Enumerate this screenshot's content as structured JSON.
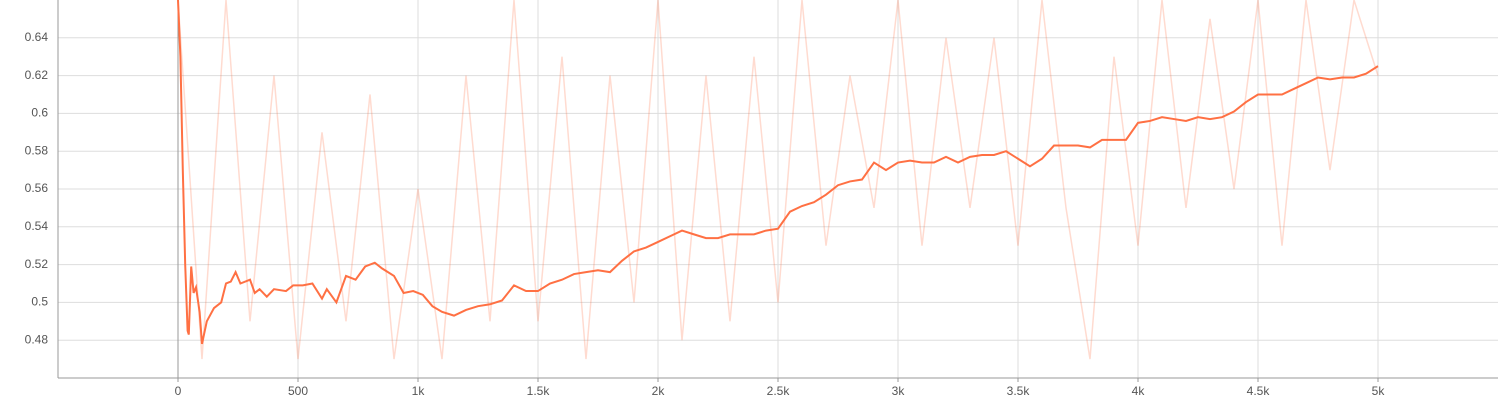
{
  "chart_data": {
    "type": "line",
    "xlim": [
      -500,
      5500
    ],
    "ylim": [
      0.46,
      0.66
    ],
    "xticks": [
      0,
      500,
      {
        "value": 1000,
        "label": "1k"
      },
      {
        "value": 1500,
        "label": "1.5k"
      },
      {
        "value": 2000,
        "label": "2k"
      },
      {
        "value": 2500,
        "label": "2.5k"
      },
      {
        "value": 3000,
        "label": "3k"
      },
      {
        "value": 3500,
        "label": "3.5k"
      },
      {
        "value": 4000,
        "label": "4k"
      },
      {
        "value": 4500,
        "label": "4.5k"
      },
      {
        "value": 5000,
        "label": "5k"
      }
    ],
    "yticks": [
      0.48,
      0.5,
      0.52,
      0.54,
      0.56,
      0.58,
      0.6,
      0.62,
      0.64
    ],
    "grid": true,
    "series": [
      {
        "color": "#ff7043",
        "x": [
          0,
          100,
          200,
          300,
          400,
          500,
          600,
          700,
          800,
          900,
          1000,
          1100,
          1200,
          1300,
          1400,
          1500,
          1600,
          1700,
          1800,
          1900,
          2000,
          2100,
          2200,
          2300,
          2400,
          2500,
          2600,
          2700,
          2800,
          2900,
          3000,
          3100,
          3200,
          3300,
          3400,
          3500,
          3600,
          3700,
          3800,
          3900,
          4000,
          4100,
          4200,
          4300,
          4400,
          4500,
          4600,
          4700,
          4800,
          4900,
          5000
        ],
        "values": [
          0.66,
          0.47,
          0.66,
          0.49,
          0.62,
          0.47,
          0.59,
          0.49,
          0.61,
          0.47,
          0.56,
          0.47,
          0.62,
          0.49,
          0.66,
          0.49,
          0.63,
          0.47,
          0.62,
          0.5,
          0.66,
          0.48,
          0.62,
          0.49,
          0.63,
          0.5,
          0.66,
          0.53,
          0.62,
          0.55,
          0.66,
          0.53,
          0.64,
          0.55,
          0.64,
          0.53,
          0.66,
          0.55,
          0.47,
          0.63,
          0.53,
          0.66,
          0.55,
          0.65,
          0.56,
          0.66,
          0.53,
          0.66,
          0.57,
          0.66,
          0.62
        ]
      },
      {
        "color": "#ff7043",
        "x": [
          0,
          10,
          20,
          30,
          40,
          45,
          55,
          65,
          75,
          90,
          100,
          120,
          150,
          180,
          200,
          220,
          240,
          260,
          300,
          320,
          340,
          370,
          400,
          450,
          480,
          520,
          560,
          600,
          620,
          660,
          700,
          740,
          780,
          820,
          850,
          900,
          940,
          980,
          1020,
          1060,
          1100,
          1150,
          1200,
          1250,
          1300,
          1350,
          1400,
          1450,
          1500,
          1550,
          1600,
          1650,
          1700,
          1750,
          1800,
          1850,
          1900,
          1950,
          2000,
          2050,
          2100,
          2150,
          2200,
          2250,
          2300,
          2350,
          2400,
          2450,
          2500,
          2550,
          2600,
          2650,
          2700,
          2750,
          2800,
          2850,
          2900,
          2950,
          3000,
          3050,
          3100,
          3150,
          3200,
          3250,
          3300,
          3350,
          3400,
          3450,
          3500,
          3550,
          3600,
          3650,
          3700,
          3750,
          3800,
          3850,
          3900,
          3950,
          4000,
          4050,
          4100,
          4150,
          4200,
          4250,
          4300,
          4350,
          4400,
          4450,
          4500,
          4550,
          4600,
          4650,
          4700,
          4750,
          4800,
          4850,
          4900,
          4950,
          5000
        ],
        "values": [
          0.66,
          0.63,
          0.57,
          0.52,
          0.485,
          0.483,
          0.519,
          0.505,
          0.508,
          0.495,
          0.478,
          0.49,
          0.497,
          0.5,
          0.51,
          0.511,
          0.516,
          0.51,
          0.512,
          0.505,
          0.507,
          0.503,
          0.507,
          0.506,
          0.509,
          0.509,
          0.51,
          0.502,
          0.507,
          0.5,
          0.514,
          0.512,
          0.519,
          0.521,
          0.518,
          0.514,
          0.505,
          0.506,
          0.504,
          0.498,
          0.495,
          0.493,
          0.496,
          0.498,
          0.499,
          0.501,
          0.509,
          0.506,
          0.506,
          0.51,
          0.512,
          0.515,
          0.516,
          0.517,
          0.516,
          0.522,
          0.527,
          0.529,
          0.532,
          0.535,
          0.538,
          0.536,
          0.534,
          0.534,
          0.536,
          0.536,
          0.536,
          0.538,
          0.539,
          0.548,
          0.551,
          0.553,
          0.557,
          0.562,
          0.564,
          0.565,
          0.574,
          0.57,
          0.574,
          0.575,
          0.574,
          0.574,
          0.577,
          0.574,
          0.577,
          0.578,
          0.578,
          0.58,
          0.576,
          0.572,
          0.576,
          0.583,
          0.583,
          0.583,
          0.582,
          0.586,
          0.586,
          0.586,
          0.595,
          0.596,
          0.598,
          0.597,
          0.596,
          0.598,
          0.597,
          0.598,
          0.601,
          0.606,
          0.61,
          0.61,
          0.61,
          0.613,
          0.616,
          0.619,
          0.618,
          0.619,
          0.619,
          0.621,
          0.625
        ]
      }
    ]
  }
}
